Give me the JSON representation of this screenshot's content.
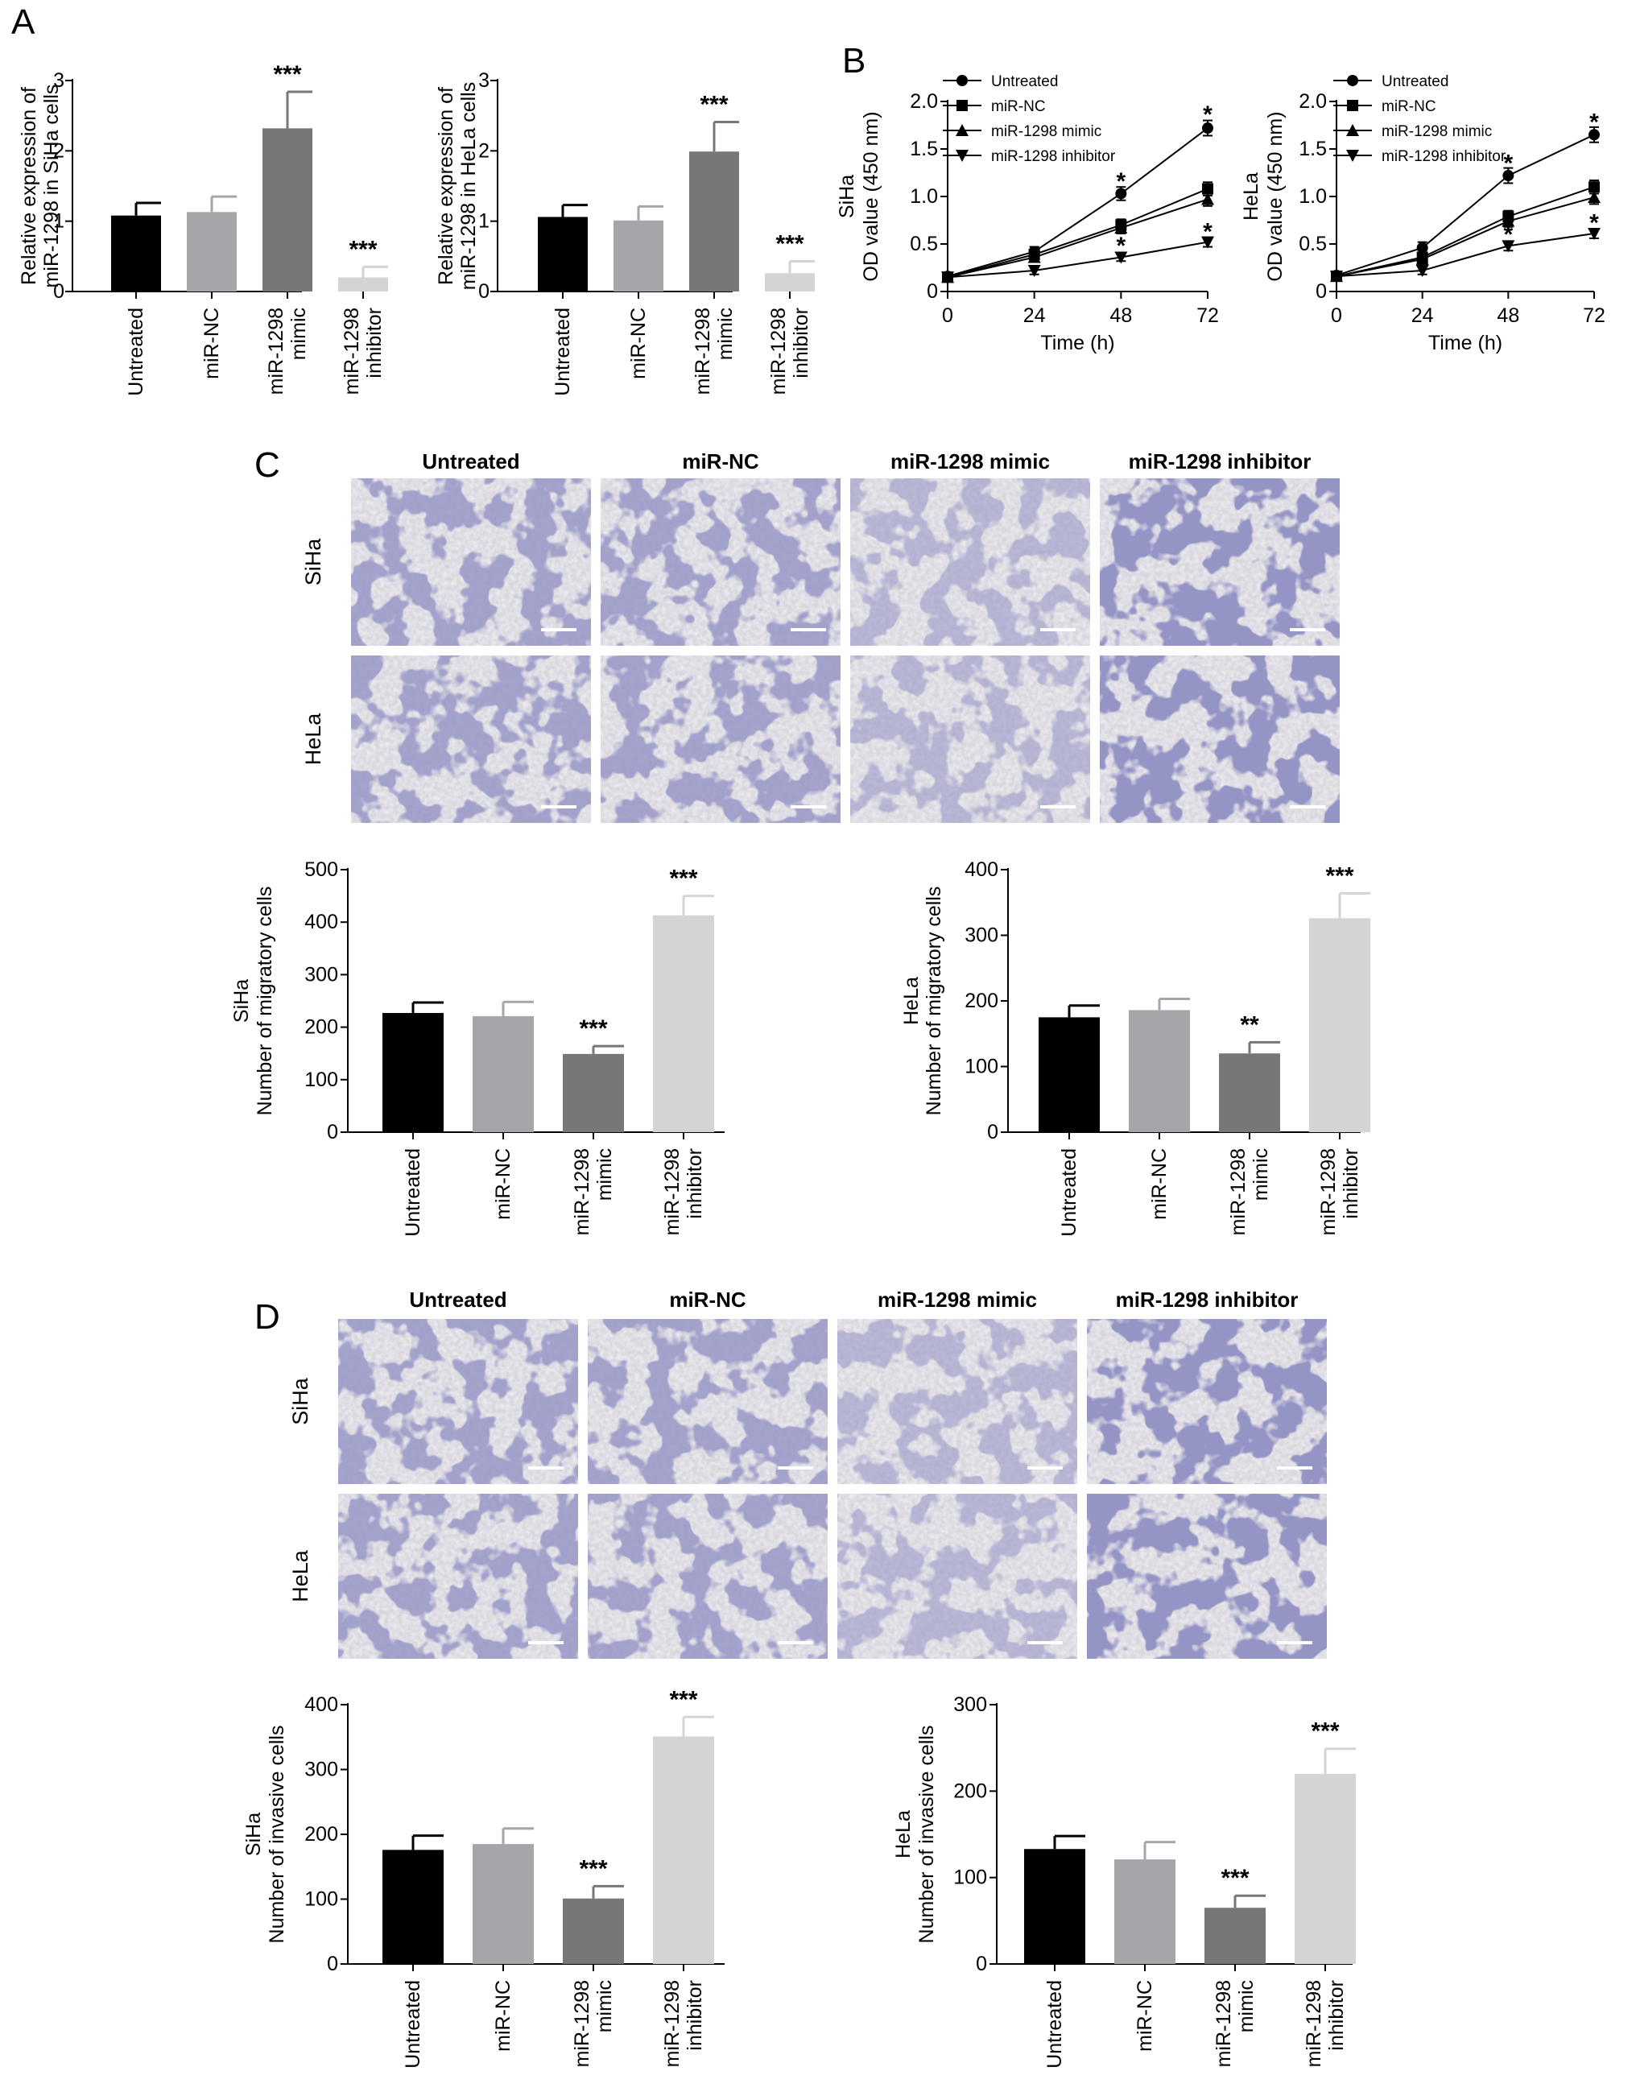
{
  "figure": {
    "panel_letters": [
      "A",
      "B",
      "C",
      "D"
    ],
    "col_headers": [
      "Untreated",
      "miR-NC",
      "miR-1298 mimic",
      "miR-1298 inhibitor"
    ],
    "row_labels": [
      "SiHa",
      "HeLa"
    ]
  },
  "colors": {
    "untreated": "#000000",
    "mir_nc": "#a6a6aa",
    "mimic": "#777777",
    "inhibitor": "#d4d4d4",
    "stain_background": "#d9d7de",
    "stain_cells": "#4a4a90",
    "scale_bar": "#ffffff"
  },
  "micrographs": {
    "description_icon": "crystal-violet-stained-cells",
    "panels": [
      "C",
      "D"
    ]
  },
  "chart_data": [
    {
      "id": "A-siha",
      "panel": "A",
      "type": "bar",
      "ylabel": [
        "Relative expression of",
        "miR-1298 in SiHa cells"
      ],
      "ylim": [
        0,
        3
      ],
      "yticks": [
        0,
        1,
        2,
        3
      ],
      "categories": [
        [
          "Untreated"
        ],
        [
          "miR-NC"
        ],
        [
          "miR-1298",
          "mimic"
        ],
        [
          "miR-1298",
          "inhibitor"
        ]
      ],
      "values": [
        1.08,
        1.13,
        2.32,
        0.2
      ],
      "errors": [
        0.18,
        0.22,
        0.52,
        0.15
      ],
      "sig": [
        "",
        "",
        "***",
        "***"
      ]
    },
    {
      "id": "A-hela",
      "panel": "A",
      "type": "bar",
      "ylabel": [
        "Relative expression of",
        "miR-1298 in HeLa cells"
      ],
      "ylim": [
        0,
        3
      ],
      "yticks": [
        0,
        1,
        2,
        3
      ],
      "categories": [
        [
          "Untreated"
        ],
        [
          "miR-NC"
        ],
        [
          "miR-1298",
          "mimic"
        ],
        [
          "miR-1298",
          "inhibitor"
        ]
      ],
      "values": [
        1.06,
        1.01,
        1.99,
        0.26
      ],
      "errors": [
        0.17,
        0.2,
        0.42,
        0.17
      ],
      "sig": [
        "",
        "",
        "***",
        "***"
      ]
    },
    {
      "id": "B-siha",
      "panel": "B",
      "type": "line",
      "ylabel": [
        "SiHa",
        "OD value (450 nm)"
      ],
      "xlabel": "Time (h)",
      "x": [
        0,
        24,
        48,
        72
      ],
      "xlim": [
        0,
        72
      ],
      "ylim": [
        0,
        2.0
      ],
      "xticks": [
        0,
        24,
        48,
        72
      ],
      "yticks": [
        0,
        0.5,
        1.0,
        1.5,
        2.0
      ],
      "ytick_labels": [
        "0",
        "0.5",
        "1.0",
        "1.5",
        "2.0"
      ],
      "series": [
        {
          "name": "Untreated",
          "marker": "circle",
          "values": [
            0.16,
            0.42,
            1.03,
            1.72
          ],
          "errors": [
            0.04,
            0.05,
            0.07,
            0.08
          ]
        },
        {
          "name": "miR-NC",
          "marker": "square",
          "values": [
            0.15,
            0.39,
            0.7,
            1.08
          ],
          "errors": [
            0.04,
            0.05,
            0.06,
            0.07
          ]
        },
        {
          "name": "miR-1298 mimic",
          "marker": "triangle-up",
          "values": [
            0.15,
            0.36,
            0.67,
            0.97
          ],
          "errors": [
            0.04,
            0.05,
            0.06,
            0.07
          ]
        },
        {
          "name": "miR-1298 inhibitor",
          "marker": "triangle-down",
          "values": [
            0.15,
            0.22,
            0.36,
            0.52
          ],
          "errors": [
            0.03,
            0.04,
            0.04,
            0.05
          ]
        }
      ],
      "annotations": [
        {
          "x": 48,
          "y": 1.18,
          "text": "*"
        },
        {
          "x": 72,
          "y": 1.88,
          "text": "*"
        },
        {
          "x": 48,
          "y": 0.5,
          "text": "*"
        },
        {
          "x": 72,
          "y": 0.65,
          "text": "*"
        }
      ]
    },
    {
      "id": "B-hela",
      "panel": "B",
      "type": "line",
      "ylabel": [
        "HeLa",
        "OD value (450 nm)"
      ],
      "xlabel": "Time (h)",
      "x": [
        0,
        24,
        48,
        72
      ],
      "xlim": [
        0,
        72
      ],
      "ylim": [
        0,
        2.0
      ],
      "xticks": [
        0,
        24,
        48,
        72
      ],
      "yticks": [
        0,
        0.5,
        1.0,
        1.5,
        2.0
      ],
      "ytick_labels": [
        "0",
        "0.5",
        "1.0",
        "1.5",
        "2.0"
      ],
      "series": [
        {
          "name": "Untreated",
          "marker": "circle",
          "values": [
            0.17,
            0.46,
            1.22,
            1.65
          ],
          "errors": [
            0.04,
            0.06,
            0.08,
            0.08
          ]
        },
        {
          "name": "miR-NC",
          "marker": "square",
          "values": [
            0.16,
            0.36,
            0.79,
            1.1
          ],
          "errors": [
            0.04,
            0.05,
            0.06,
            0.07
          ]
        },
        {
          "name": "miR-1298 mimic",
          "marker": "triangle-up",
          "values": [
            0.16,
            0.34,
            0.74,
            0.99
          ],
          "errors": [
            0.04,
            0.05,
            0.06,
            0.07
          ]
        },
        {
          "name": "miR-1298 inhibitor",
          "marker": "triangle-down",
          "values": [
            0.16,
            0.22,
            0.48,
            0.61
          ],
          "errors": [
            0.03,
            0.04,
            0.05,
            0.05
          ]
        }
      ],
      "annotations": [
        {
          "x": 48,
          "y": 1.37,
          "text": "*"
        },
        {
          "x": 72,
          "y": 1.8,
          "text": "*"
        },
        {
          "x": 48,
          "y": 0.62,
          "text": "*"
        },
        {
          "x": 72,
          "y": 0.74,
          "text": "*"
        }
      ]
    },
    {
      "id": "C-siha",
      "panel": "C",
      "type": "bar",
      "ylabel": [
        "SiHa",
        "Number of migratory cells"
      ],
      "ylim": [
        0,
        500
      ],
      "yticks": [
        0,
        100,
        200,
        300,
        400,
        500
      ],
      "categories": [
        [
          "Untreated"
        ],
        [
          "miR-NC"
        ],
        [
          "miR-1298",
          "mimic"
        ],
        [
          "miR-1298",
          "inhibitor"
        ]
      ],
      "values": [
        227,
        221,
        149,
        413
      ],
      "errors": [
        20,
        27,
        15,
        37
      ],
      "sig": [
        "",
        "",
        "***",
        "***"
      ]
    },
    {
      "id": "C-hela",
      "panel": "C",
      "type": "bar",
      "ylabel": [
        "HeLa",
        "Number of migratory cells"
      ],
      "ylim": [
        0,
        400
      ],
      "yticks": [
        0,
        100,
        200,
        300,
        400
      ],
      "categories": [
        [
          "Untreated"
        ],
        [
          "miR-NC"
        ],
        [
          "miR-1298",
          "mimic"
        ],
        [
          "miR-1298",
          "inhibitor"
        ]
      ],
      "values": [
        175,
        186,
        120,
        326
      ],
      "errors": [
        18,
        17,
        17,
        38
      ],
      "sig": [
        "",
        "",
        "**",
        "***"
      ]
    },
    {
      "id": "D-siha",
      "panel": "D",
      "type": "bar",
      "ylabel": [
        "SiHa",
        "Number of invasive cells"
      ],
      "ylim": [
        0,
        400
      ],
      "yticks": [
        0,
        100,
        200,
        300,
        400
      ],
      "categories": [
        [
          "Untreated"
        ],
        [
          "miR-NC"
        ],
        [
          "miR-1298",
          "mimic"
        ],
        [
          "miR-1298",
          "inhibitor"
        ]
      ],
      "values": [
        176,
        185,
        101,
        351
      ],
      "errors": [
        22,
        24,
        19,
        30
      ],
      "sig": [
        "",
        "",
        "***",
        "***"
      ]
    },
    {
      "id": "D-hela",
      "panel": "D",
      "type": "bar",
      "ylabel": [
        "HeLa",
        "Number of invasive cells"
      ],
      "ylim": [
        0,
        300
      ],
      "yticks": [
        0,
        100,
        200,
        300
      ],
      "categories": [
        [
          "Untreated"
        ],
        [
          "miR-NC"
        ],
        [
          "miR-1298",
          "mimic"
        ],
        [
          "miR-1298",
          "inhibitor"
        ]
      ],
      "values": [
        133,
        121,
        65,
        220
      ],
      "errors": [
        15,
        20,
        14,
        29
      ],
      "sig": [
        "",
        "",
        "***",
        "***"
      ]
    }
  ]
}
